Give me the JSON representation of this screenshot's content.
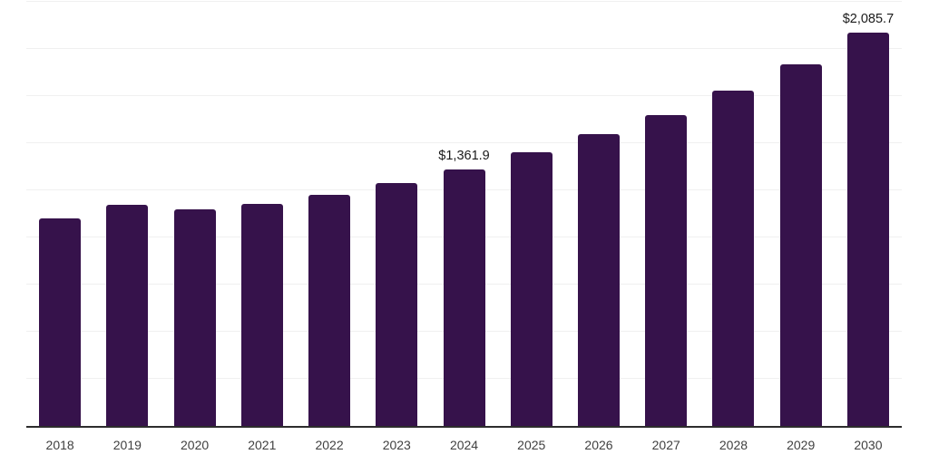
{
  "chart_data": {
    "type": "bar",
    "title": "",
    "xlabel": "",
    "ylabel": "",
    "categories": [
      "2018",
      "2019",
      "2020",
      "2021",
      "2022",
      "2023",
      "2024",
      "2025",
      "2026",
      "2027",
      "2028",
      "2029",
      "2030"
    ],
    "values": [
      1103,
      1173,
      1148,
      1176,
      1226,
      1288,
      1361.9,
      1453,
      1548,
      1651,
      1778,
      1917,
      2085.7
    ],
    "point_labels": [
      "",
      "",
      "",
      "",
      "",
      "",
      "$1,361.9",
      "",
      "",
      "",
      "",
      "",
      "$2,085.7"
    ],
    "ylim": [
      0,
      2250
    ],
    "gridline_step": 250,
    "grid": "horizontal",
    "legend": "none",
    "bar_color": "#36124b",
    "axis_line_color": "#2d2d2d",
    "gridline_color": "#f0f0f0",
    "tick_label_color": "#404040",
    "data_label_color": "#1a1a1a"
  }
}
